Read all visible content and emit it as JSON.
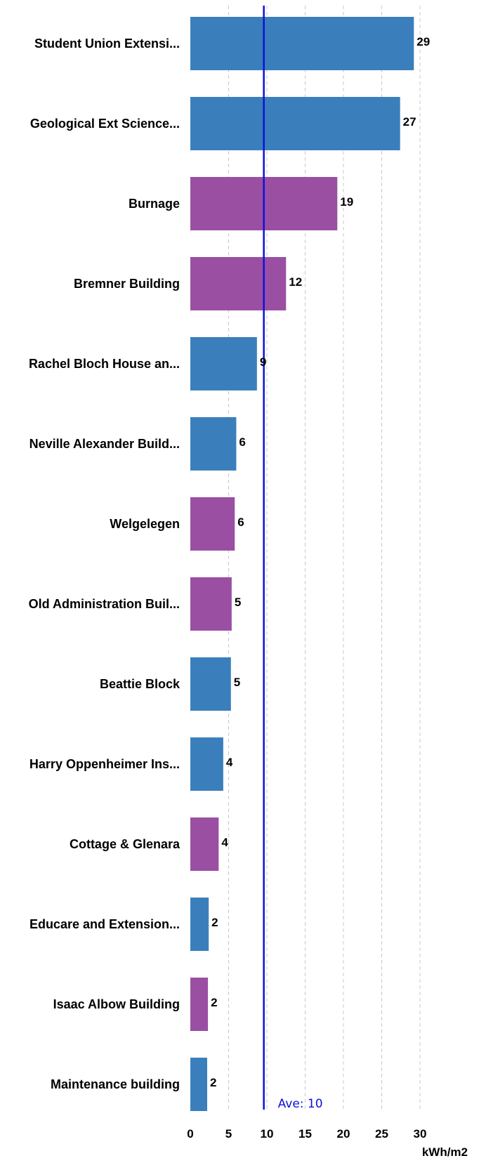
{
  "chart_data": {
    "type": "bar",
    "orientation": "horizontal",
    "categories": [
      "Student Union Extensi...",
      "Geological Ext Science...",
      "Burnage",
      "Bremner Building",
      "Rachel Bloch House an...",
      "Neville Alexander Build...",
      "Welgelegen",
      "Old Administration Buil...",
      "Beattie Block",
      "Harry Oppenheimer Ins...",
      "Cottage & Glenara",
      "Educare and Extension...",
      "Isaac Albow Building",
      "Maintenance building"
    ],
    "values": [
      29.2,
      27.4,
      19.2,
      12.5,
      8.7,
      6.0,
      5.8,
      5.4,
      5.3,
      4.3,
      3.7,
      2.4,
      2.3,
      2.2
    ],
    "value_labels": [
      "29",
      "27",
      "19",
      "12",
      "9",
      "6",
      "6",
      "5",
      "5",
      "4",
      "4",
      "2",
      "2",
      "2"
    ],
    "bar_colors": [
      "#3a7fbb",
      "#3a7fbb",
      "#9a4fa3",
      "#9a4fa3",
      "#3a7fbb",
      "#3a7fbb",
      "#9a4fa3",
      "#9a4fa3",
      "#3a7fbb",
      "#3a7fbb",
      "#9a4fa3",
      "#3a7fbb",
      "#9a4fa3",
      "#3a7fbb"
    ],
    "xlim": [
      0,
      30
    ],
    "xticks": [
      0,
      5,
      10,
      15,
      20,
      25,
      30
    ],
    "xlabel": "kWh/m2",
    "grid": "vertical dashed",
    "average": {
      "value": 9.6,
      "label": "Ave: 10",
      "color": "#0b12d8"
    }
  }
}
